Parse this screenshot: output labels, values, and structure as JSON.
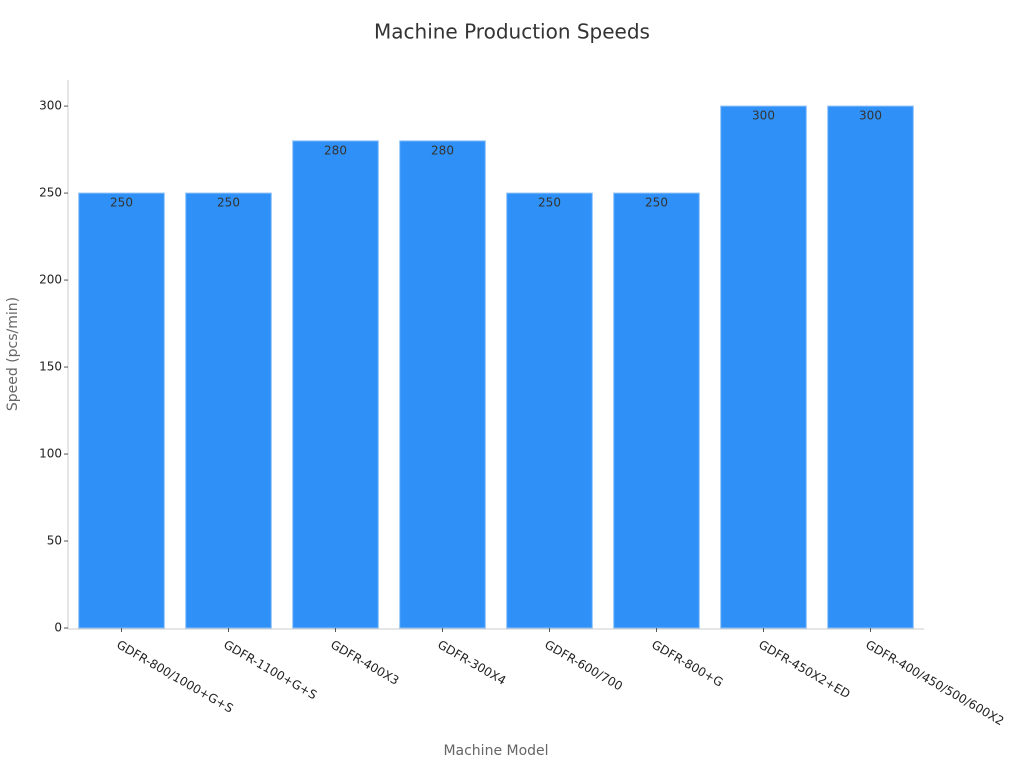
{
  "chart_data": {
    "type": "bar",
    "title": "Machine Production Speeds",
    "x_label": "Machine Model",
    "y_label": "Speed (pcs/min)",
    "categories": [
      "GDFR-800/1000+G+S",
      "GDFR-1100+G+S",
      "GDFR-400X3",
      "GDFR-300X4",
      "GDFR-600/700",
      "GDFR-800+G",
      "GDFR-450X2+ED",
      "GDFR-400/450/500/600X2"
    ],
    "values": [
      250,
      250,
      280,
      280,
      250,
      250,
      300,
      300
    ],
    "color": "#2f91f7",
    "ylim": [
      0,
      315
    ],
    "yticks": [
      0,
      50,
      100,
      150,
      200,
      250,
      300
    ],
    "grid": false
  }
}
